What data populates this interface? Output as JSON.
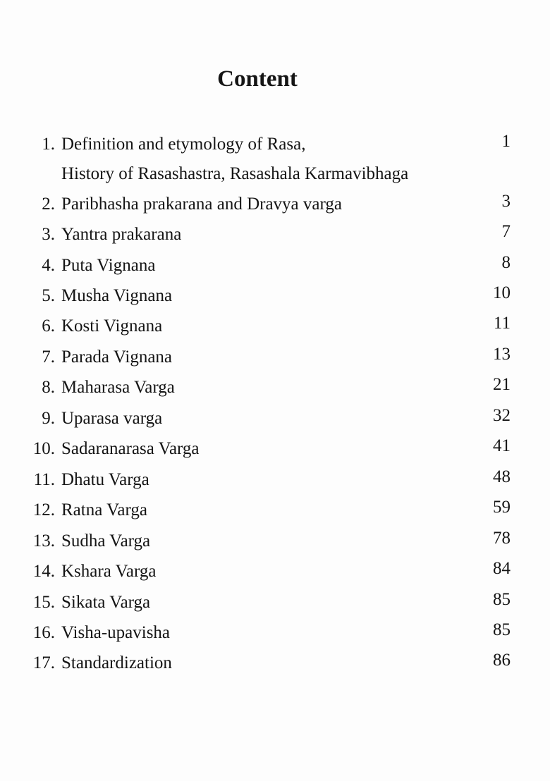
{
  "title": "Content",
  "entries": [
    {
      "num": "1.",
      "title": "Definition and etymology of Rasa,",
      "continuation": "History of Rasashastra, Rasashala Karmavibhaga",
      "page": "1"
    },
    {
      "num": "2.",
      "title": "Paribhasha prakarana and Dravya varga",
      "page": "3"
    },
    {
      "num": "3.",
      "title": "Yantra prakarana",
      "page": "7"
    },
    {
      "num": "4.",
      "title": "Puta Vignana",
      "page": "8"
    },
    {
      "num": "5.",
      "title": "Musha Vignana",
      "page": "10"
    },
    {
      "num": "6.",
      "title": "Kosti Vignana",
      "page": "11"
    },
    {
      "num": "7.",
      "title": "Parada Vignana",
      "page": "13"
    },
    {
      "num": "8.",
      "title": "Maharasa Varga",
      "page": "21"
    },
    {
      "num": "9.",
      "title": "Uparasa varga",
      "page": "32"
    },
    {
      "num": "10.",
      "title": "Sadaranarasa Varga",
      "page": "41"
    },
    {
      "num": "11.",
      "title": "Dhatu Varga",
      "page": "48"
    },
    {
      "num": "12.",
      "title": "Ratna Varga",
      "page": "59"
    },
    {
      "num": "13.",
      "title": "Sudha Varga",
      "page": "78"
    },
    {
      "num": "14.",
      "title": "Kshara Varga",
      "page": "84"
    },
    {
      "num": "15.",
      "title": "Sikata Varga",
      "page": "85"
    },
    {
      "num": "16.",
      "title": "Visha-upavisha",
      "page": "85"
    },
    {
      "num": "17.",
      "title": "Standardization",
      "page": "86"
    }
  ]
}
